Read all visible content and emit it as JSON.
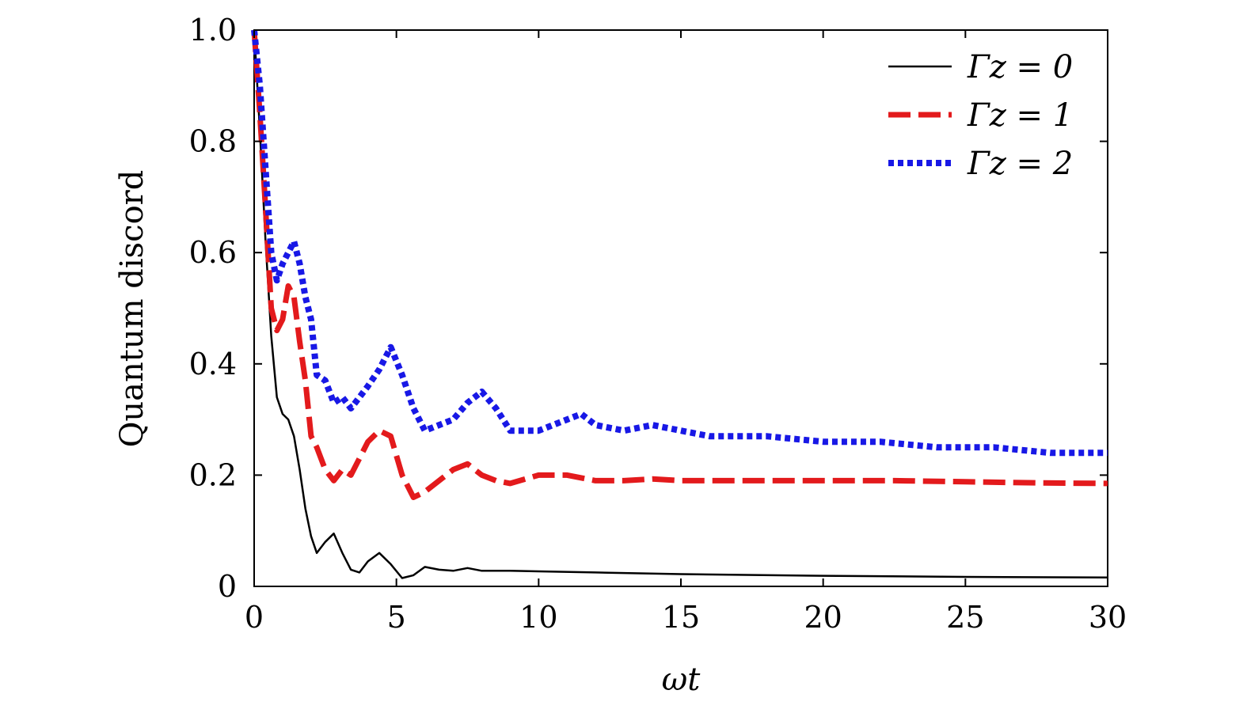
{
  "chart_data": {
    "type": "line",
    "xlabel": "ωt",
    "ylabel": "Quantum discord",
    "xlim": [
      0,
      30
    ],
    "ylim": [
      0,
      1.0
    ],
    "x_ticks": [
      0,
      5,
      10,
      15,
      20,
      25,
      30
    ],
    "x_tick_labels": [
      "0",
      "5",
      "10",
      "15",
      "20",
      "25",
      "30"
    ],
    "y_ticks": [
      0,
      0.2,
      0.4,
      0.6,
      0.8,
      1.0
    ],
    "y_tick_labels": [
      "0",
      "0.2",
      "0.4",
      "0.6",
      "0.8",
      "1.0"
    ],
    "grid": false,
    "legend_position": "top-right",
    "series": [
      {
        "name": "Γz = 0",
        "legend_label": "Γz = 0",
        "color": "#000000",
        "style": "solid",
        "x": [
          0,
          0.2,
          0.4,
          0.6,
          0.8,
          1.0,
          1.2,
          1.4,
          1.6,
          1.8,
          2.0,
          2.2,
          2.5,
          2.8,
          3.1,
          3.4,
          3.7,
          4.0,
          4.4,
          4.8,
          5.2,
          5.6,
          6.0,
          6.5,
          7.0,
          7.5,
          8.0,
          9.0,
          10.0,
          12.0,
          15.0,
          20.0,
          25.0,
          30.0
        ],
        "y": [
          1.0,
          0.82,
          0.62,
          0.45,
          0.34,
          0.31,
          0.3,
          0.27,
          0.21,
          0.14,
          0.09,
          0.06,
          0.08,
          0.095,
          0.06,
          0.03,
          0.025,
          0.045,
          0.06,
          0.04,
          0.015,
          0.02,
          0.035,
          0.03,
          0.028,
          0.033,
          0.028,
          0.028,
          0.027,
          0.025,
          0.022,
          0.019,
          0.017,
          0.016
        ]
      },
      {
        "name": "Γz = 1",
        "legend_label": "Γz = 1",
        "color": "#e31a1c",
        "style": "dashed",
        "x": [
          0,
          0.2,
          0.4,
          0.6,
          0.8,
          1.0,
          1.2,
          1.4,
          1.6,
          1.8,
          2.0,
          2.2,
          2.5,
          2.8,
          3.1,
          3.4,
          3.7,
          4.0,
          4.4,
          4.8,
          5.2,
          5.6,
          6.0,
          6.5,
          7.0,
          7.5,
          8.0,
          8.5,
          9.0,
          10.0,
          11.0,
          12.0,
          13.0,
          14.0,
          15.0,
          17.5,
          20.0,
          22.5,
          25.0,
          27.5,
          30.0
        ],
        "y": [
          1.0,
          0.85,
          0.68,
          0.5,
          0.46,
          0.48,
          0.54,
          0.52,
          0.44,
          0.37,
          0.27,
          0.25,
          0.21,
          0.19,
          0.21,
          0.2,
          0.23,
          0.26,
          0.28,
          0.27,
          0.2,
          0.16,
          0.17,
          0.19,
          0.21,
          0.22,
          0.2,
          0.19,
          0.185,
          0.2,
          0.2,
          0.19,
          0.19,
          0.193,
          0.19,
          0.19,
          0.19,
          0.19,
          0.188,
          0.186,
          0.185
        ]
      },
      {
        "name": "Γz = 2",
        "legend_label": "Γz = 2",
        "color": "#1818e6",
        "style": "dotted",
        "x": [
          0,
          0.2,
          0.4,
          0.6,
          0.8,
          1.0,
          1.2,
          1.4,
          1.6,
          1.8,
          2.0,
          2.2,
          2.5,
          2.8,
          3.1,
          3.4,
          3.7,
          4.0,
          4.4,
          4.8,
          5.2,
          5.6,
          6.0,
          6.5,
          7.0,
          7.5,
          8.0,
          8.5,
          9.0,
          10.0,
          11.0,
          11.5,
          12.0,
          13.0,
          14.0,
          15.0,
          16.0,
          18.0,
          20.0,
          22.0,
          24.0,
          26.0,
          28.0,
          30.0
        ],
        "y": [
          1.0,
          0.9,
          0.75,
          0.6,
          0.55,
          0.58,
          0.6,
          0.62,
          0.58,
          0.52,
          0.48,
          0.38,
          0.37,
          0.33,
          0.34,
          0.32,
          0.34,
          0.36,
          0.39,
          0.43,
          0.38,
          0.32,
          0.28,
          0.29,
          0.3,
          0.33,
          0.35,
          0.32,
          0.28,
          0.28,
          0.3,
          0.31,
          0.29,
          0.28,
          0.29,
          0.28,
          0.27,
          0.27,
          0.26,
          0.26,
          0.25,
          0.25,
          0.24,
          0.24
        ]
      }
    ]
  }
}
